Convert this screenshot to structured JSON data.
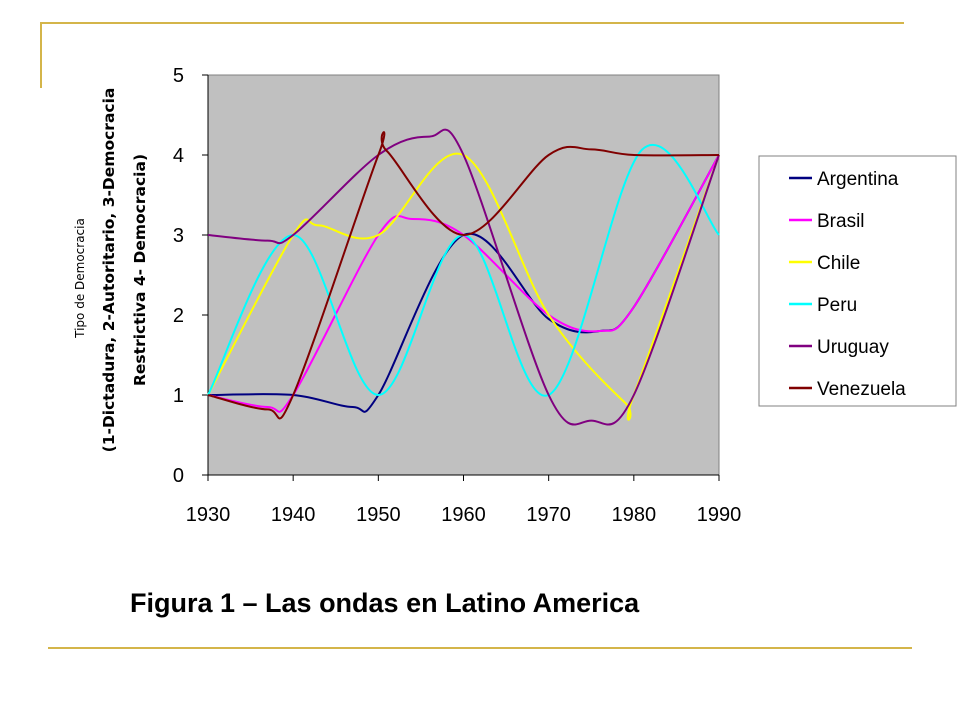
{
  "caption": "Figura 1 – Las ondas en Latino America",
  "chart_data": {
    "type": "line",
    "title": "",
    "ylabel_lines": [
      "Tipo de Democracia",
      "(1-Dictadura, 2-Autoritario, 3-Democracia",
      "Restrictiva 4- Democracia)"
    ],
    "xlabel": "",
    "x": [
      1930,
      1940,
      1950,
      1960,
      1970,
      1980,
      1990
    ],
    "xticks": [
      "1930",
      "1940",
      "1950",
      "1960",
      "1970",
      "1980",
      "1990"
    ],
    "yticks": [
      "0",
      "1",
      "2",
      "3",
      "4",
      "5"
    ],
    "xlim": [
      1930,
      1990
    ],
    "ylim": [
      0,
      5
    ],
    "grid": false,
    "plot_background": "#c0c0c0",
    "legend_position": "right",
    "series": [
      {
        "name": "Argentina",
        "color": "#000080",
        "points": [
          [
            1930,
            1
          ],
          [
            1940,
            1
          ],
          [
            1947,
            0.85
          ],
          [
            1950,
            1
          ],
          [
            1960,
            3
          ],
          [
            1970,
            1.95
          ],
          [
            1976,
            1.8
          ],
          [
            1980,
            2.1
          ],
          [
            1990,
            4
          ]
        ]
      },
      {
        "name": "Brasil",
        "color": "#ff00ff",
        "points": [
          [
            1930,
            1
          ],
          [
            1937,
            0.85
          ],
          [
            1940,
            1
          ],
          [
            1950,
            3
          ],
          [
            1954,
            3.2
          ],
          [
            1960,
            3
          ],
          [
            1970,
            2
          ],
          [
            1976,
            1.8
          ],
          [
            1980,
            2.1
          ],
          [
            1990,
            4
          ]
        ]
      },
      {
        "name": "Chile",
        "color": "#ffff00",
        "points": [
          [
            1930,
            1
          ],
          [
            1940,
            3
          ],
          [
            1943,
            3.12
          ],
          [
            1950,
            3
          ],
          [
            1960,
            4
          ],
          [
            1970,
            2
          ],
          [
            1979,
            0.9
          ],
          [
            1980,
            1
          ],
          [
            1990,
            4
          ]
        ]
      },
      {
        "name": "Peru",
        "color": "#00ffff",
        "points": [
          [
            1930,
            1
          ],
          [
            1940,
            3
          ],
          [
            1950,
            1
          ],
          [
            1960,
            3
          ],
          [
            1970,
            1
          ],
          [
            1981,
            4.07
          ],
          [
            1990,
            3
          ]
        ]
      },
      {
        "name": "Uruguay",
        "color": "#800080",
        "points": [
          [
            1930,
            3
          ],
          [
            1937,
            2.93
          ],
          [
            1940,
            3
          ],
          [
            1950,
            4
          ],
          [
            1956,
            4.23
          ],
          [
            1960,
            4
          ],
          [
            1970,
            1
          ],
          [
            1975,
            0.68
          ],
          [
            1980,
            1
          ],
          [
            1990,
            4
          ]
        ]
      },
      {
        "name": "Venezuela",
        "color": "#800000",
        "points": [
          [
            1930,
            1
          ],
          [
            1937,
            0.82
          ],
          [
            1940,
            1
          ],
          [
            1950,
            4
          ],
          [
            1951,
            4.05
          ],
          [
            1960,
            3
          ],
          [
            1970,
            4
          ],
          [
            1975,
            4.07
          ],
          [
            1980,
            4
          ],
          [
            1990,
            4
          ]
        ]
      }
    ]
  }
}
